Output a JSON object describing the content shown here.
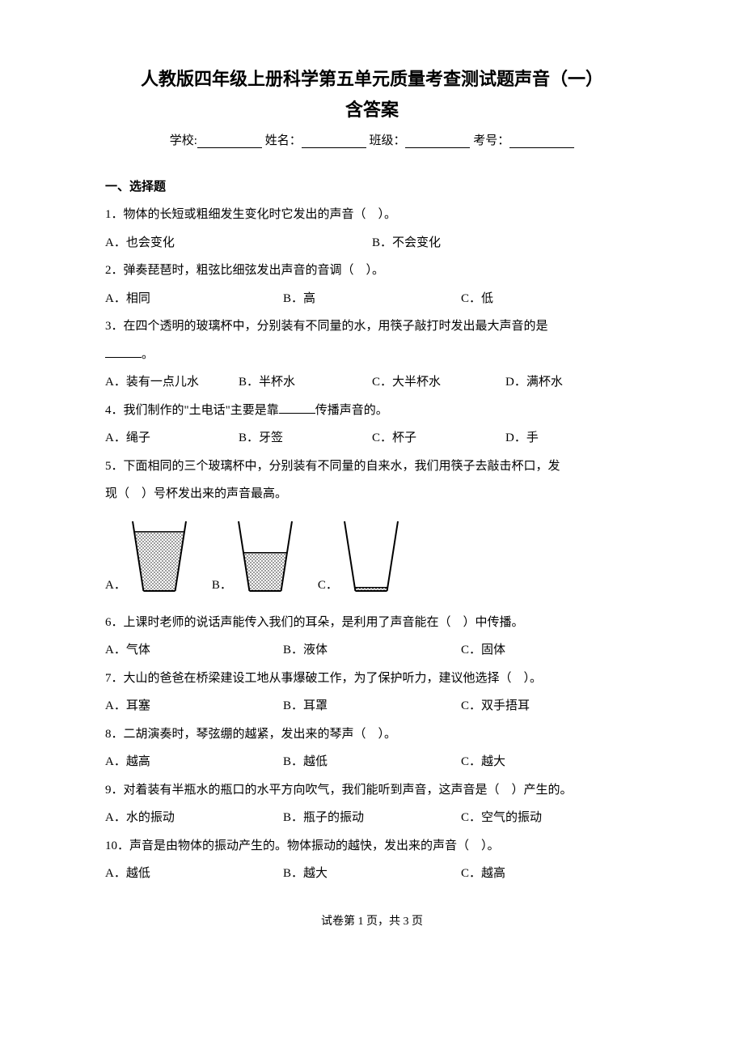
{
  "title": "人教版四年级上册科学第五单元质量考查测试题声音（一）",
  "subtitle": "含答案",
  "info": {
    "school": "学校:",
    "name": "姓名：",
    "class": "班级：",
    "exam_no": "考号："
  },
  "section_header": "一、选择题",
  "q1": {
    "stem": "1．物体的长短或粗细发生变化时它发出的声音（　）。",
    "opts": [
      "A．也会变化",
      "B．不会变化"
    ]
  },
  "q2": {
    "stem": "2．弹奏琵琶时，粗弦比细弦发出声音的音调（　）。",
    "opts": [
      "A．相同",
      "B．高",
      "C．低"
    ]
  },
  "q3": {
    "stem_a": "3．在四个透明的玻璃杯中，分别装有不同量的水，用筷子敲打时发出最大声音的是",
    "stem_b": "。",
    "opts": [
      "A．装有一点儿水",
      "B．半杯水",
      "C．大半杯水",
      "D．满杯水"
    ]
  },
  "q4": {
    "stem_a": "4．我们制作的\"土电话\"主要是靠",
    "stem_b": "传播声音的。",
    "opts": [
      "A．绳子",
      "B．牙签",
      "C．杯子",
      "D．手"
    ]
  },
  "q5": {
    "stem_a": "5．下面相同的三个玻璃杯中，分别装有不同量的自来水，我们用筷子去敲击杯口，发",
    "stem_b": "现（　）号杯发出来的声音最高。",
    "labels": [
      "A．",
      "B．",
      "C．"
    ]
  },
  "q6": {
    "stem": "6．上课时老师的说话声能传入我们的耳朵，是利用了声音能在（　）中传播。",
    "opts": [
      "A．气体",
      "B．液体",
      "C．固体"
    ]
  },
  "q7": {
    "stem": "7．大山的爸爸在桥梁建设工地从事爆破工作，为了保护听力，建议他选择（　）。",
    "opts": [
      "A．耳塞",
      "B．耳罩",
      "C．双手捂耳"
    ]
  },
  "q8": {
    "stem": "8．二胡演奏时，琴弦绷的越紧，发出来的琴声（　）。",
    "opts": [
      "A．越高",
      "B．越低",
      "C．越大"
    ]
  },
  "q9": {
    "stem": "9．对着装有半瓶水的瓶口的水平方向吹气，我们能听到声音，这声音是（　）产生的。",
    "opts": [
      "A．水的振动",
      "B．瓶子的振动",
      "C．空气的振动"
    ]
  },
  "q10": {
    "stem": "10．声音是由物体的振动产生的。物体振动的越快，发出来的声音（　）。",
    "opts": [
      "A．越低",
      "B．越大",
      "C．越高"
    ]
  },
  "footer": "试卷第 1 页，共 3 页",
  "cups": {
    "stroke": "#000000",
    "fill_pattern": "#555555",
    "width": 70,
    "height": 90,
    "levels": [
      0.85,
      0.55,
      0.05
    ]
  }
}
